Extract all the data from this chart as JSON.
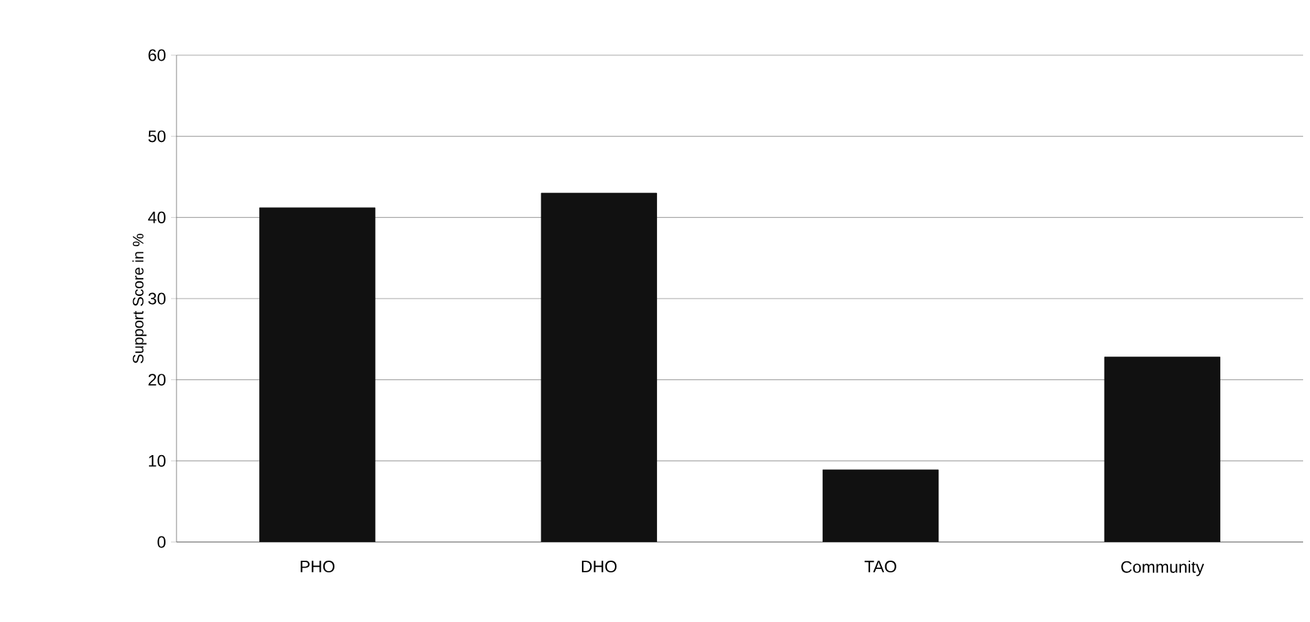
{
  "chart_data": {
    "type": "bar",
    "ylabel": "Support Score in %",
    "categories": [
      "PHO",
      "DHO",
      "TAO",
      "Community"
    ],
    "values": [
      41.2,
      43.0,
      8.9,
      22.8
    ],
    "color": "#111111",
    "ylim": [
      0,
      60
    ],
    "yticks": [
      0,
      10,
      20,
      30,
      40,
      50,
      60
    ],
    "grid": "y"
  }
}
